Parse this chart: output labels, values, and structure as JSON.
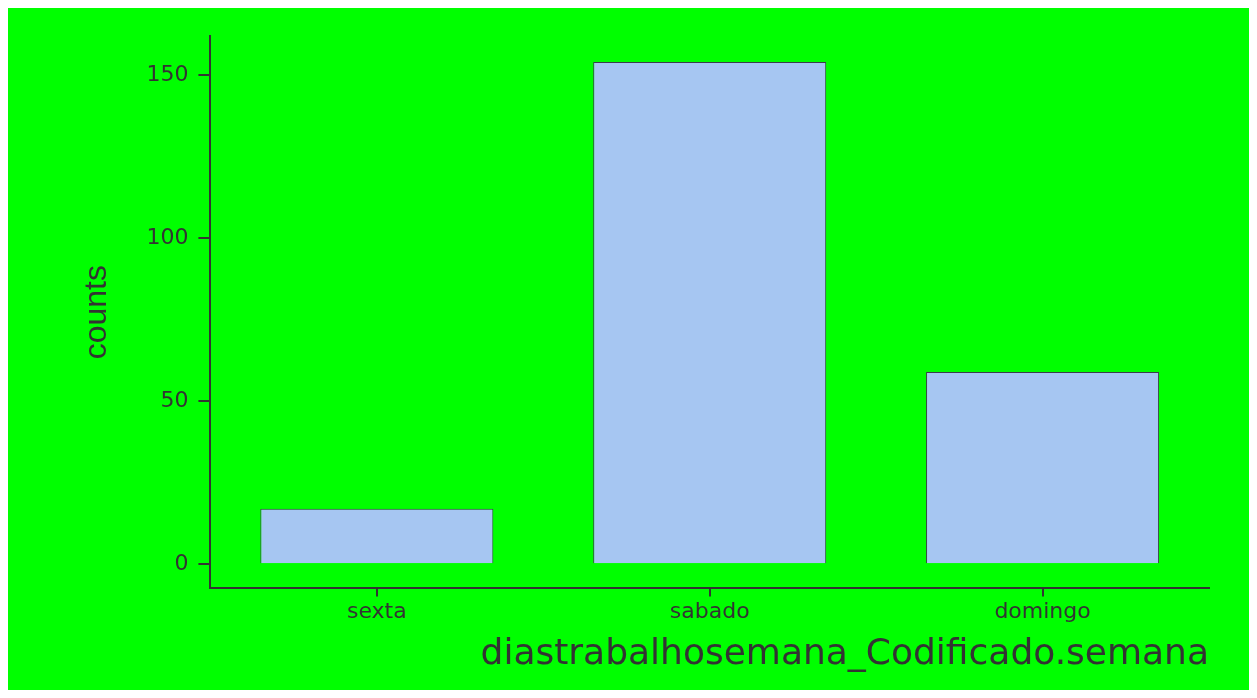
{
  "chart_data": {
    "type": "bar",
    "categories": [
      "sexta",
      "sabado",
      "domingo"
    ],
    "values": [
      17,
      154,
      59
    ],
    "color": "#a6c6f2",
    "xlabel": "diastrabalhosemana_Codificado.semana",
    "ylabel": "counts",
    "ylim": [
      -7.4,
      162
    ],
    "yticks": [
      0,
      50,
      100,
      150
    ],
    "grid": false,
    "legend": false
  }
}
